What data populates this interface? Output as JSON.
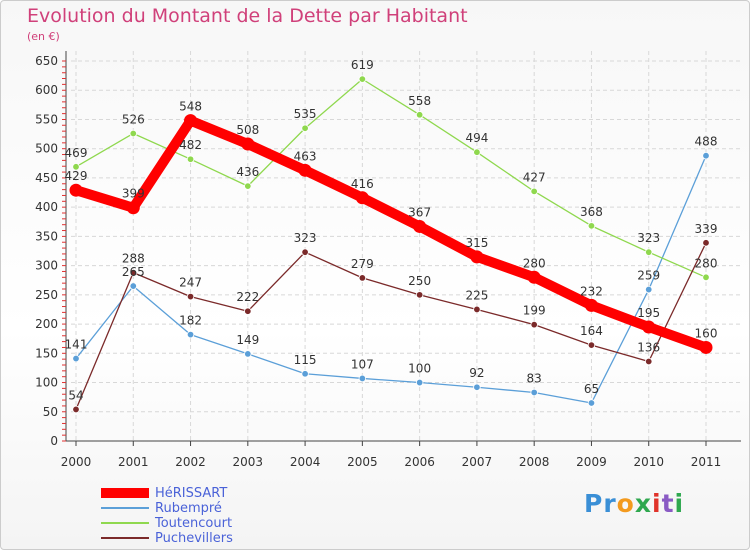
{
  "title": "Evolution du Montant de la Dette par Habitant",
  "subtitle": "(en €)",
  "logo_text": "Proxiti",
  "chart_data": {
    "type": "line",
    "title": "Evolution du Montant de la Dette par Habitant",
    "subtitle": "(en €)",
    "x": [
      "2000",
      "2001",
      "2002",
      "2003",
      "2004",
      "2005",
      "2006",
      "2007",
      "2008",
      "2009",
      "2010",
      "2011"
    ],
    "ylim": [
      0,
      650
    ],
    "yticks": [
      0,
      50,
      100,
      150,
      200,
      250,
      300,
      350,
      400,
      450,
      500,
      550,
      600,
      650
    ],
    "grid": true,
    "legend_position": "bottom-left",
    "series": [
      {
        "name": "Rubempré",
        "color": "#5b9fd8",
        "values": [
          141,
          265,
          182,
          149,
          115,
          107,
          100,
          92,
          83,
          65,
          259,
          488
        ]
      },
      {
        "name": "Toutencourt",
        "color": "#8fd84e",
        "values": [
          469,
          526,
          482,
          436,
          535,
          619,
          558,
          494,
          427,
          368,
          323,
          280
        ]
      },
      {
        "name": "Puchevillers",
        "color": "#7b2a2a",
        "values": [
          54,
          288,
          247,
          222,
          323,
          279,
          250,
          225,
          199,
          164,
          136,
          339
        ]
      },
      {
        "name": "HéRISSART",
        "color": "#ff0000",
        "values": [
          429,
          399,
          548,
          508,
          463,
          416,
          367,
          315,
          280,
          232,
          195,
          160
        ]
      }
    ],
    "legend_order": [
      "HéRISSART",
      "Rubempré",
      "Toutencourt",
      "Puchevillers"
    ]
  }
}
